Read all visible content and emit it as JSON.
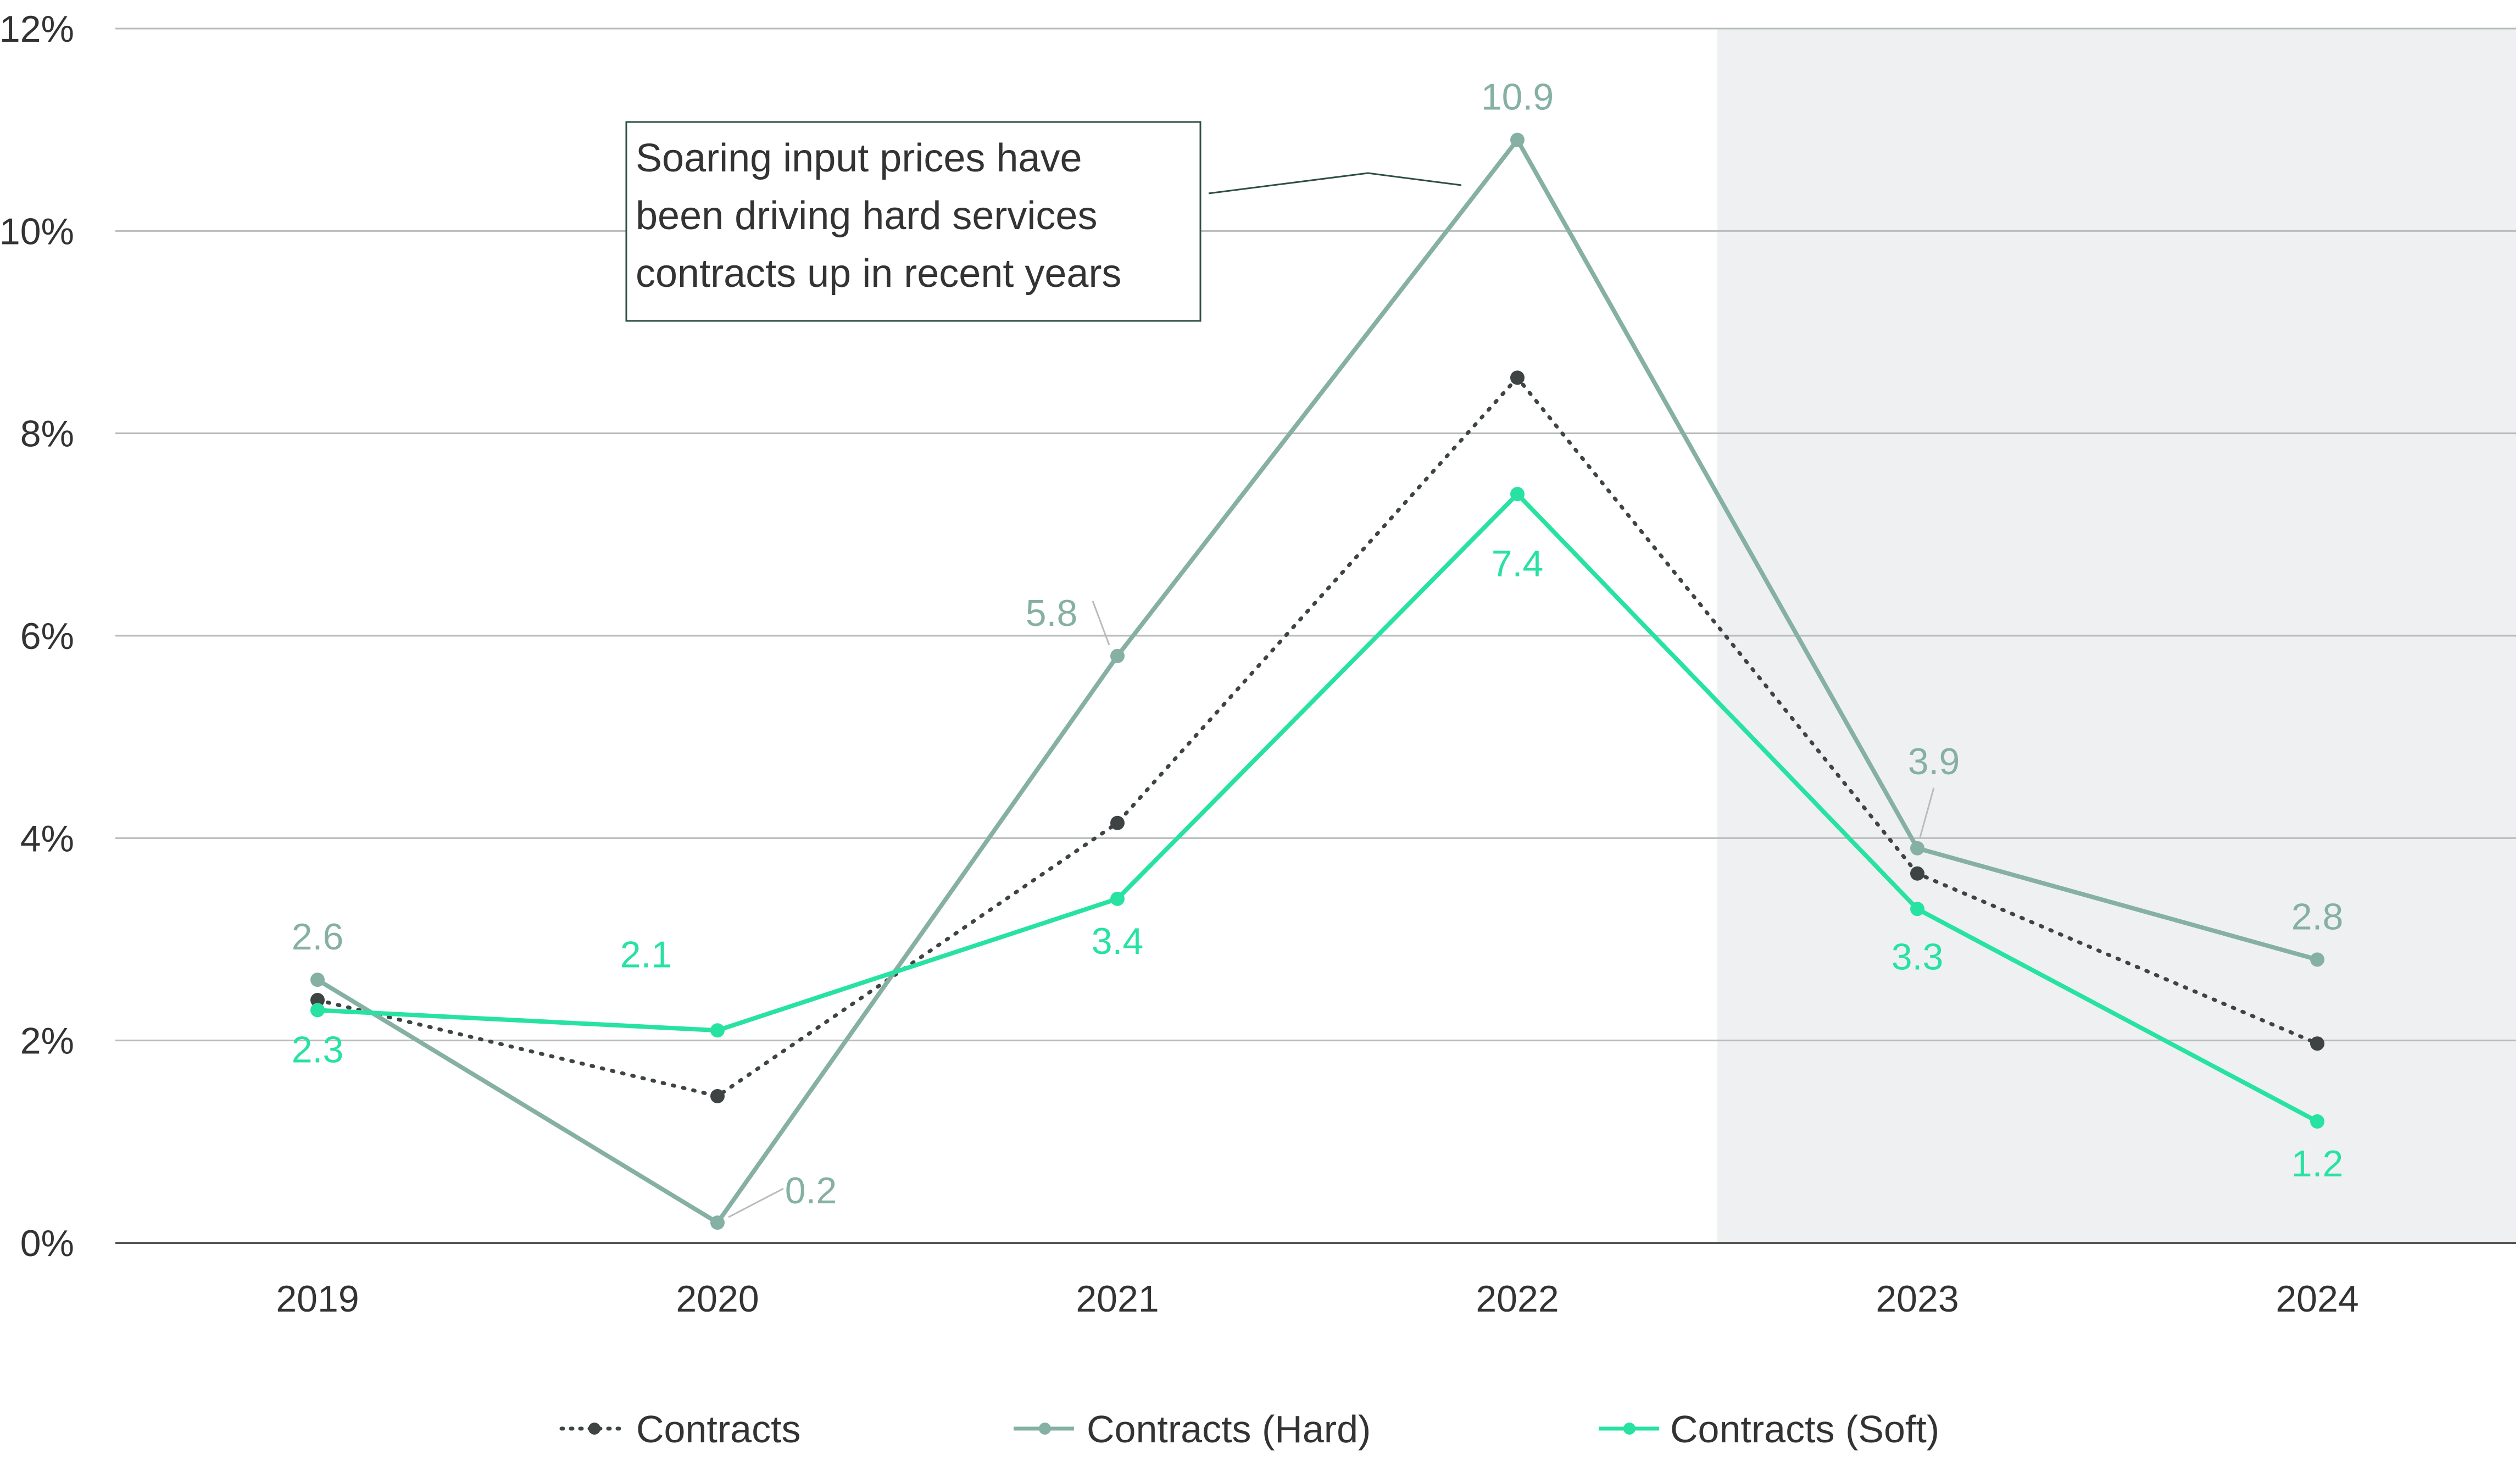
{
  "chart_data": {
    "type": "line",
    "categories": [
      "2019",
      "2020",
      "2021",
      "2022",
      "2023",
      "2024"
    ],
    "ylim": [
      0,
      12
    ],
    "yticks": [
      0,
      2,
      4,
      6,
      8,
      10,
      12
    ],
    "ytick_labels": [
      "0%",
      "2%",
      "4%",
      "6%",
      "8%",
      "10%",
      "12%"
    ],
    "grid": true,
    "legend_position": "bottom",
    "shaded_region": {
      "from": "2023",
      "to": "2024",
      "color": "#eff0f2"
    },
    "series": [
      {
        "name": "Contracts",
        "values": [
          2.4,
          1.45,
          4.15,
          8.55,
          3.65,
          1.97
        ],
        "color": "#3d4443",
        "style": "dotted",
        "labels": [
          "",
          "",
          "",
          "",
          "",
          ""
        ]
      },
      {
        "name": "Contracts (Hard)",
        "values": [
          2.6,
          0.2,
          5.8,
          10.9,
          3.9,
          2.8
        ],
        "color": "#85b0a3",
        "style": "solid",
        "labels": [
          "2.6",
          "0.2",
          "5.8",
          "10.9",
          "3.9",
          "2.8"
        ]
      },
      {
        "name": "Contracts (Soft)",
        "values": [
          2.3,
          2.1,
          3.4,
          7.4,
          3.3,
          1.2
        ],
        "color": "#27e2a0",
        "style": "solid",
        "labels": [
          "2.3",
          "2.1",
          "3.4",
          "7.4",
          "3.3",
          "1.2"
        ]
      }
    ],
    "annotation": {
      "lines": [
        "Soaring input prices have",
        "been driving hard services",
        "contracts up in recent years"
      ]
    }
  }
}
